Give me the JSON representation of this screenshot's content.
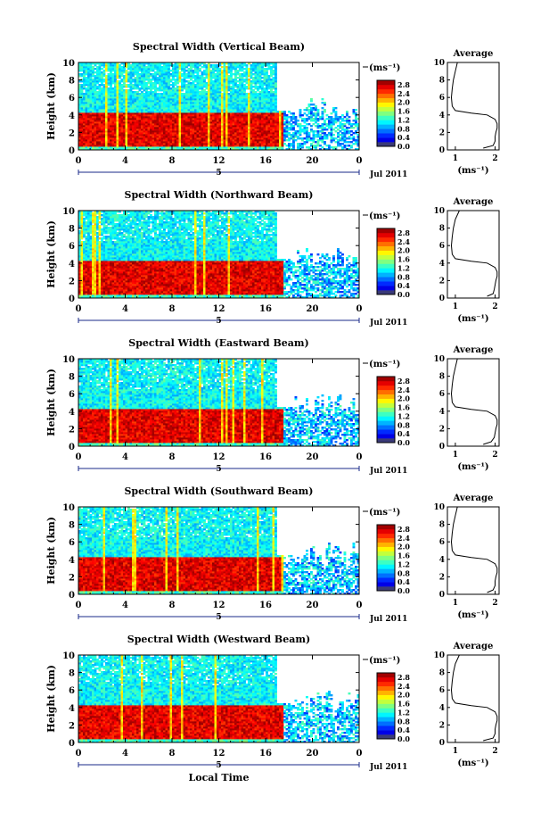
{
  "chart_data": [
    {
      "type": "heatmap",
      "title": "Spectral Width (Vertical Beam)",
      "beam": "vertical",
      "ylabel": "Height (km)",
      "xlim": [
        0,
        24
      ],
      "ylim": [
        0,
        10
      ],
      "x_ticks": [
        "0",
        "4",
        "8",
        "12",
        "16",
        "20",
        "0"
      ],
      "y_ticks": [
        "0",
        "2",
        "4",
        "6",
        "8",
        "10"
      ],
      "date_marker": "5",
      "date_label": "Jul 2011",
      "colorbar": {
        "unit": "(ms⁻¹)",
        "ticks": [
          "0.0",
          "0.4",
          "0.8",
          "1.2",
          "1.6",
          "2.0",
          "2.4",
          "2.8"
        ],
        "range": [
          0,
          3.0
        ]
      },
      "profile": {
        "title": "Average",
        "xlabel": "(ms⁻¹)",
        "x_ticks": [
          "1",
          "2"
        ],
        "xlim": [
          0.8,
          2.1
        ],
        "height": [
          0.2,
          0.5,
          1.0,
          1.5,
          2.0,
          2.5,
          3.0,
          3.5,
          4.0,
          4.2,
          4.5,
          5.0,
          6.0,
          7.0,
          8.0,
          9.0,
          10.0
        ],
        "value": [
          1.7,
          1.95,
          2.0,
          2.0,
          2.02,
          2.05,
          2.05,
          2.0,
          1.8,
          1.4,
          1.0,
          0.92,
          0.9,
          0.92,
          0.95,
          1.0,
          1.05
        ]
      }
    },
    {
      "type": "heatmap",
      "title": "Spectral Width (Northward Beam)",
      "beam": "northward",
      "ylabel": "Height (km)",
      "xlim": [
        0,
        24
      ],
      "ylim": [
        0,
        10
      ],
      "x_ticks": [
        "0",
        "4",
        "8",
        "12",
        "16",
        "20",
        "0"
      ],
      "y_ticks": [
        "0",
        "2",
        "4",
        "6",
        "8",
        "10"
      ],
      "date_marker": "5",
      "date_label": "Jul 2011",
      "colorbar": {
        "unit": "(ms⁻¹)",
        "ticks": [
          "0.0",
          "0.4",
          "0.8",
          "1.2",
          "1.6",
          "2.0",
          "2.4",
          "2.8"
        ],
        "range": [
          0,
          3.0
        ]
      },
      "profile": {
        "title": "Average",
        "xlabel": "(ms⁻¹)",
        "x_ticks": [
          "1",
          "2"
        ],
        "xlim": [
          0.8,
          2.1
        ],
        "height": [
          0.2,
          0.5,
          1.0,
          1.5,
          2.0,
          2.5,
          3.0,
          3.5,
          4.0,
          4.2,
          4.5,
          5.0,
          6.0,
          7.0,
          8.0,
          9.0,
          10.0
        ],
        "value": [
          1.8,
          1.95,
          1.98,
          2.0,
          2.02,
          2.05,
          2.05,
          2.0,
          1.8,
          1.4,
          1.0,
          0.92,
          0.9,
          0.92,
          0.95,
          1.0,
          1.1
        ]
      }
    },
    {
      "type": "heatmap",
      "title": "Spectral Width (Eastward Beam)",
      "beam": "eastward",
      "ylabel": "Height (km)",
      "xlim": [
        0,
        24
      ],
      "ylim": [
        0,
        10
      ],
      "x_ticks": [
        "0",
        "4",
        "8",
        "12",
        "16",
        "20",
        "0"
      ],
      "y_ticks": [
        "0",
        "2",
        "4",
        "6",
        "8",
        "10"
      ],
      "date_marker": "5",
      "date_label": "Jul 2011",
      "colorbar": {
        "unit": "(ms⁻¹)",
        "ticks": [
          "0.0",
          "0.4",
          "0.8",
          "1.2",
          "1.6",
          "2.0",
          "2.4",
          "2.8"
        ],
        "range": [
          0,
          3.0
        ]
      },
      "profile": {
        "title": "Average",
        "xlabel": "(ms⁻¹)",
        "x_ticks": [
          "1",
          "2"
        ],
        "xlim": [
          0.8,
          2.1
        ],
        "height": [
          0.2,
          0.5,
          1.0,
          1.5,
          2.0,
          2.5,
          3.0,
          3.5,
          4.0,
          4.2,
          4.5,
          5.0,
          6.0,
          7.0,
          8.0,
          9.0,
          10.0
        ],
        "value": [
          1.7,
          1.9,
          1.98,
          2.0,
          2.02,
          2.05,
          2.05,
          2.0,
          1.8,
          1.4,
          1.0,
          0.92,
          0.9,
          0.92,
          0.95,
          1.0,
          1.05
        ]
      }
    },
    {
      "type": "heatmap",
      "title": "Spectral Width (Southward Beam)",
      "beam": "southward",
      "ylabel": "Height (km)",
      "xlim": [
        0,
        24
      ],
      "ylim": [
        0,
        10
      ],
      "x_ticks": [
        "0",
        "4",
        "8",
        "12",
        "16",
        "20",
        "0"
      ],
      "y_ticks": [
        "0",
        "2",
        "4",
        "6",
        "8",
        "10"
      ],
      "date_marker": "5",
      "date_label": "Jul 2011",
      "colorbar": {
        "unit": "(ms⁻¹)",
        "ticks": [
          "0.0",
          "0.4",
          "0.8",
          "1.2",
          "1.6",
          "2.0",
          "2.4",
          "2.8"
        ],
        "range": [
          0,
          3.0
        ]
      },
      "profile": {
        "title": "Average",
        "xlabel": "(ms⁻¹)",
        "x_ticks": [
          "1",
          "2"
        ],
        "xlim": [
          0.8,
          2.1
        ],
        "height": [
          0.2,
          0.5,
          1.0,
          1.5,
          2.0,
          2.5,
          3.0,
          3.5,
          4.0,
          4.2,
          4.5,
          5.0,
          6.0,
          7.0,
          8.0,
          9.0,
          10.0
        ],
        "value": [
          1.8,
          1.95,
          2.0,
          2.0,
          2.02,
          2.05,
          2.05,
          2.0,
          1.8,
          1.4,
          1.0,
          0.92,
          0.9,
          0.92,
          0.95,
          1.0,
          1.05
        ]
      }
    },
    {
      "type": "heatmap",
      "title": "Spectral Width (Westward Beam)",
      "beam": "westward",
      "ylabel": "Height (km)",
      "xlabel": "Local Time",
      "xlim": [
        0,
        24
      ],
      "ylim": [
        0,
        10
      ],
      "x_ticks": [
        "0",
        "4",
        "8",
        "12",
        "16",
        "20",
        "0"
      ],
      "y_ticks": [
        "0",
        "2",
        "4",
        "6",
        "8",
        "10"
      ],
      "date_marker": "5",
      "date_label": "Jul 2011",
      "colorbar": {
        "unit": "(ms⁻¹)",
        "ticks": [
          "0.0",
          "0.4",
          "0.8",
          "1.2",
          "1.6",
          "2.0",
          "2.4",
          "2.8"
        ],
        "range": [
          0,
          3.0
        ]
      },
      "profile": {
        "title": "Average",
        "xlabel": "(ms⁻¹)",
        "x_ticks": [
          "1",
          "2"
        ],
        "xlim": [
          0.8,
          2.1
        ],
        "height": [
          0.2,
          0.5,
          1.0,
          1.5,
          2.0,
          2.5,
          3.0,
          3.5,
          4.0,
          4.2,
          4.5,
          5.0,
          6.0,
          7.0,
          8.0,
          9.0,
          10.0
        ],
        "value": [
          1.7,
          1.95,
          2.0,
          2.0,
          2.02,
          2.05,
          2.05,
          2.0,
          1.8,
          1.4,
          1.0,
          0.92,
          0.9,
          0.92,
          0.95,
          1.0,
          1.1
        ]
      }
    }
  ]
}
